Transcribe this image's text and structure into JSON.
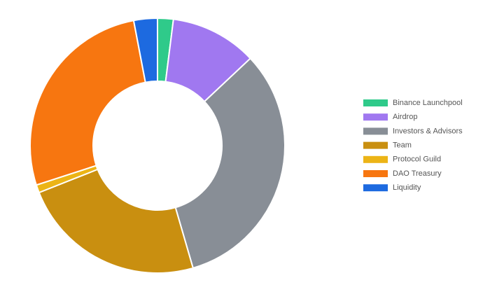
{
  "chart_data": {
    "type": "pie",
    "categories": [
      "Binance Launchpool",
      "Airdrop",
      "Investors & Advisors",
      "Team",
      "Protocol Guild",
      "DAO Treasury",
      "Liquidity"
    ],
    "values": [
      2,
      11,
      32.5,
      23.5,
      1,
      27,
      3
    ],
    "colors": [
      "#2fca8a",
      "#a078f0",
      "#888e96",
      "#c98f10",
      "#ecb416",
      "#f77610",
      "#1d6ae0"
    ],
    "legend": "right"
  }
}
